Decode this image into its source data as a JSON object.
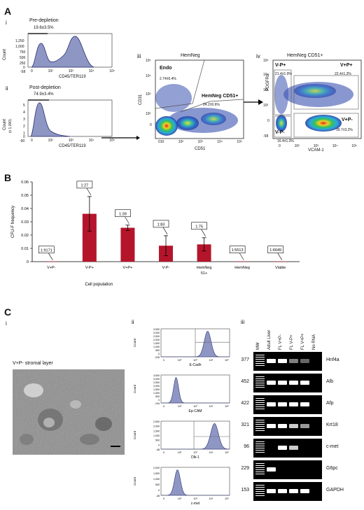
{
  "panelA": {
    "letter": "A",
    "i": {
      "roman": "i",
      "title": "Pre-depletion",
      "gate": "19.6±3.5%",
      "ylabel": "Count",
      "xlabel": "CD45/TER119",
      "yticks": [
        "1,250",
        "1,000",
        "750",
        "500",
        "250",
        "0",
        "-58"
      ],
      "xticks": [
        "0",
        "10²",
        "10³",
        "10⁴",
        "10⁵"
      ]
    },
    "ii": {
      "roman": "ii",
      "title": "Post-depletion",
      "gate": "74.9±3.4%",
      "ylabel": "Count",
      "ylabel2": "(x 1,000)",
      "xlabel": "CD45/TER119",
      "yticks": [
        "5",
        "4",
        "3",
        "2",
        "1",
        "0",
        "-90"
      ],
      "xticks": [
        "0",
        "10²",
        "10³",
        "10⁴",
        "10⁵"
      ]
    },
    "iii": {
      "roman": "iii",
      "title": "HemNeg",
      "gate1": "Endo",
      "pct1": "2.74±0.4%",
      "gate2": "HemNeg CD51+",
      "pct2": "24.2±0.6%",
      "ylabel": "CD31",
      "xlabel": "CD51",
      "yticks": [
        "10⁵",
        "10⁴",
        "10³",
        "10²",
        "0"
      ],
      "xticks": [
        "010",
        "10²",
        "10³",
        "10⁴",
        "10⁵"
      ]
    },
    "iv": {
      "roman": "iv",
      "title": "HemNeg CD51+",
      "q1": "V-P+",
      "q1pct": "21.4±1.9%",
      "q2": "V+P+",
      "q2pct": "22.4±1.3%",
      "q3": "V-P-",
      "q3pct": "16.4±1.3%",
      "q4": "V+P-",
      "q4pct": "39.7±3.2%",
      "ylabel": "PDGFRα",
      "xlabel": "VCAM-1",
      "yticks": [
        "10⁵",
        "10⁴",
        "10³",
        "10²",
        "0",
        "-58"
      ],
      "xticks": [
        "0",
        "10²",
        "10³",
        "10⁴",
        "10⁵"
      ]
    }
  },
  "panelB": {
    "letter": "B",
    "chart_data": {
      "type": "bar",
      "categories": [
        "V+P-",
        "V-P+",
        "V+P+",
        "V-P-",
        "HemNeg 51+",
        "HemNeg",
        "Viable"
      ],
      "values": [
        0.00011,
        0.036,
        0.0255,
        0.012,
        0.013,
        0.00018,
        0.00015
      ],
      "errors": [
        0,
        0.013,
        0.002,
        0.0075,
        0.005,
        0,
        0
      ],
      "ratios": [
        "1:9171",
        "1:27",
        "1:39",
        "1:83",
        "1:75",
        "1:5513",
        "1:6649"
      ],
      "ylabel": "CFU-F frequency",
      "xlabel": "Cell population",
      "yticks": [
        "0.06",
        "0.05",
        "0.04",
        "0.03",
        "0.02",
        "0.01",
        "0"
      ],
      "ylim": [
        0,
        0.06
      ],
      "bar_color": "#b5152b"
    }
  },
  "panelC": {
    "letter": "C",
    "i": {
      "roman": "i",
      "caption": "V+P- stromal layer"
    },
    "ii": {
      "roman": "ii",
      "histos": [
        {
          "marker": "E-Cadh",
          "yticks": [
            "3,500",
            "3,000",
            "2,500",
            "2,000",
            "1,500",
            "1,000",
            "500",
            "0",
            "-226"
          ],
          "ylabel": "Count"
        },
        {
          "marker": "Ep-CAM",
          "yticks": [
            "3,500",
            "3,000",
            "2,500",
            "2,000",
            "1,500",
            "1,000",
            "500",
            "0",
            "-194"
          ],
          "ylabel": "Count"
        },
        {
          "marker": "Dlk-1",
          "yticks": [
            "2,500",
            "2,000",
            "1,500",
            "1,000",
            "500",
            "0",
            "-48"
          ],
          "ylabel": "Count"
        },
        {
          "marker": "c-met",
          "yticks": [
            "2,000",
            "1,500",
            "1,000",
            "500",
            "0",
            "-48"
          ],
          "ylabel": "Count"
        }
      ],
      "xticks": [
        "0",
        "10²",
        "10³",
        "10⁴",
        "10⁵"
      ]
    },
    "iii": {
      "roman": "iii",
      "lanes": [
        "MW",
        "Adult Liver",
        "FL V+P-",
        "FL V-P+",
        "FL V+P+",
        "No RNA"
      ],
      "rows": [
        {
          "bp": "377",
          "gene": "Hnf4a"
        },
        {
          "bp": "452",
          "gene": "Alb"
        },
        {
          "bp": "422",
          "gene": "Afp"
        },
        {
          "bp": "321",
          "gene": "Krt18"
        },
        {
          "bp": "96",
          "gene": "c-met"
        },
        {
          "bp": "229",
          "gene": "G6pc"
        },
        {
          "bp": "153",
          "gene": "GAPDH"
        }
      ]
    }
  }
}
